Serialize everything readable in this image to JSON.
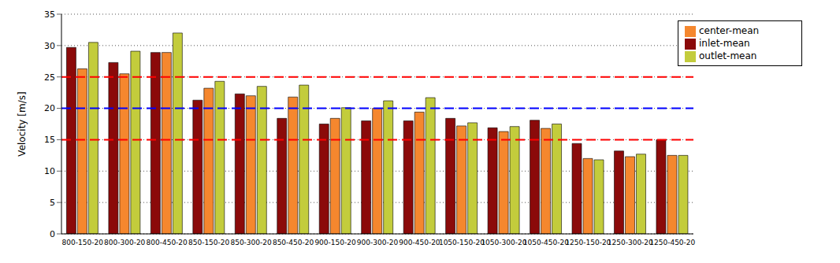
{
  "chart_data": {
    "type": "bar",
    "y_label": "Velocity [m/s]",
    "categories": [
      "800-150-20",
      "800-300-20",
      "800-450-20",
      "850-150-20",
      "850-300-20",
      "850-450-20",
      "900-150-20",
      "900-300-20",
      "900-450-20",
      "1050-150-20",
      "1050-300-20",
      "1050-450-20",
      "1250-150-20",
      "1250-300-20",
      "1250-450-20"
    ],
    "series": [
      {
        "name": "inlet-mean",
        "color": "#8b0a0a",
        "values": [
          29.7,
          27.3,
          28.9,
          21.3,
          22.3,
          18.4,
          17.5,
          18.0,
          18.0,
          18.4,
          16.9,
          18.1,
          14.4,
          13.2,
          15.0
        ]
      },
      {
        "name": "center-mean",
        "color": "#f5872e",
        "values": [
          26.3,
          25.5,
          28.9,
          23.2,
          22.0,
          21.8,
          18.4,
          20.0,
          19.4,
          17.2,
          16.3,
          16.8,
          12.0,
          12.3,
          12.5
        ]
      },
      {
        "name": "outlet-mean",
        "color": "#c3cc3c",
        "values": [
          30.5,
          29.1,
          32.0,
          24.3,
          23.5,
          23.7,
          20.1,
          21.2,
          21.7,
          17.7,
          17.1,
          17.5,
          11.8,
          12.7,
          12.5
        ]
      }
    ],
    "reference_lines": [
      {
        "value": 25,
        "color": "#ff0000",
        "line_style": "dashed"
      },
      {
        "value": 20,
        "color": "#0000ff",
        "line_style": "dashed"
      },
      {
        "value": 15,
        "color": "#ff0000",
        "line_style": "dashed"
      }
    ],
    "ylim": [
      0,
      35
    ],
    "yticks": [
      0,
      5,
      10,
      15,
      20,
      25,
      30,
      35
    ],
    "grid": true,
    "legend": "upper right"
  }
}
